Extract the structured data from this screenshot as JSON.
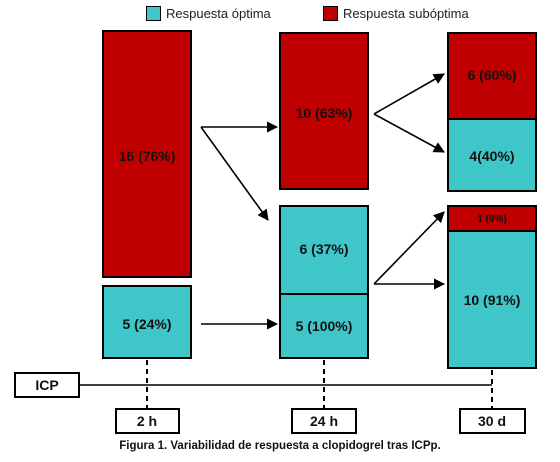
{
  "colors": {
    "optimal": "#3ec6c9",
    "suboptimal": "#c00000",
    "stroke": "#000000"
  },
  "legend": {
    "optimal_label": "Respuesta óptima",
    "suboptimal_label": "Respuesta subóptima"
  },
  "columns": [
    {
      "time_label": "2 h",
      "segments": [
        {
          "kind": "suboptimal",
          "label": "16 (76%)",
          "count": 16
        },
        {
          "kind": "optimal",
          "label": "5 (24%)",
          "count": 5
        }
      ]
    },
    {
      "time_label": "24 h",
      "segments": [
        {
          "kind": "suboptimal",
          "label": "10 (63%)",
          "count": 10
        },
        {
          "kind": "optimal",
          "label": "6 (37%)",
          "count": 6
        },
        {
          "kind": "optimal",
          "label": "5 (100%)",
          "count": 5
        }
      ]
    },
    {
      "time_label": "30 d",
      "segments": [
        {
          "kind": "suboptimal",
          "label": "6 (60%)",
          "count": 6
        },
        {
          "kind": "optimal",
          "label": "4(40%)",
          "count": 4
        },
        {
          "kind": "suboptimal",
          "label": "1 (9%)",
          "count": 1
        },
        {
          "kind": "optimal",
          "label": "10 (91%)",
          "count": 10
        }
      ]
    }
  ],
  "timeline": {
    "start_label": "ICP"
  },
  "caption": "Figura 1.  Variabilidad de respuesta a clopidogrel tras ICPp."
}
